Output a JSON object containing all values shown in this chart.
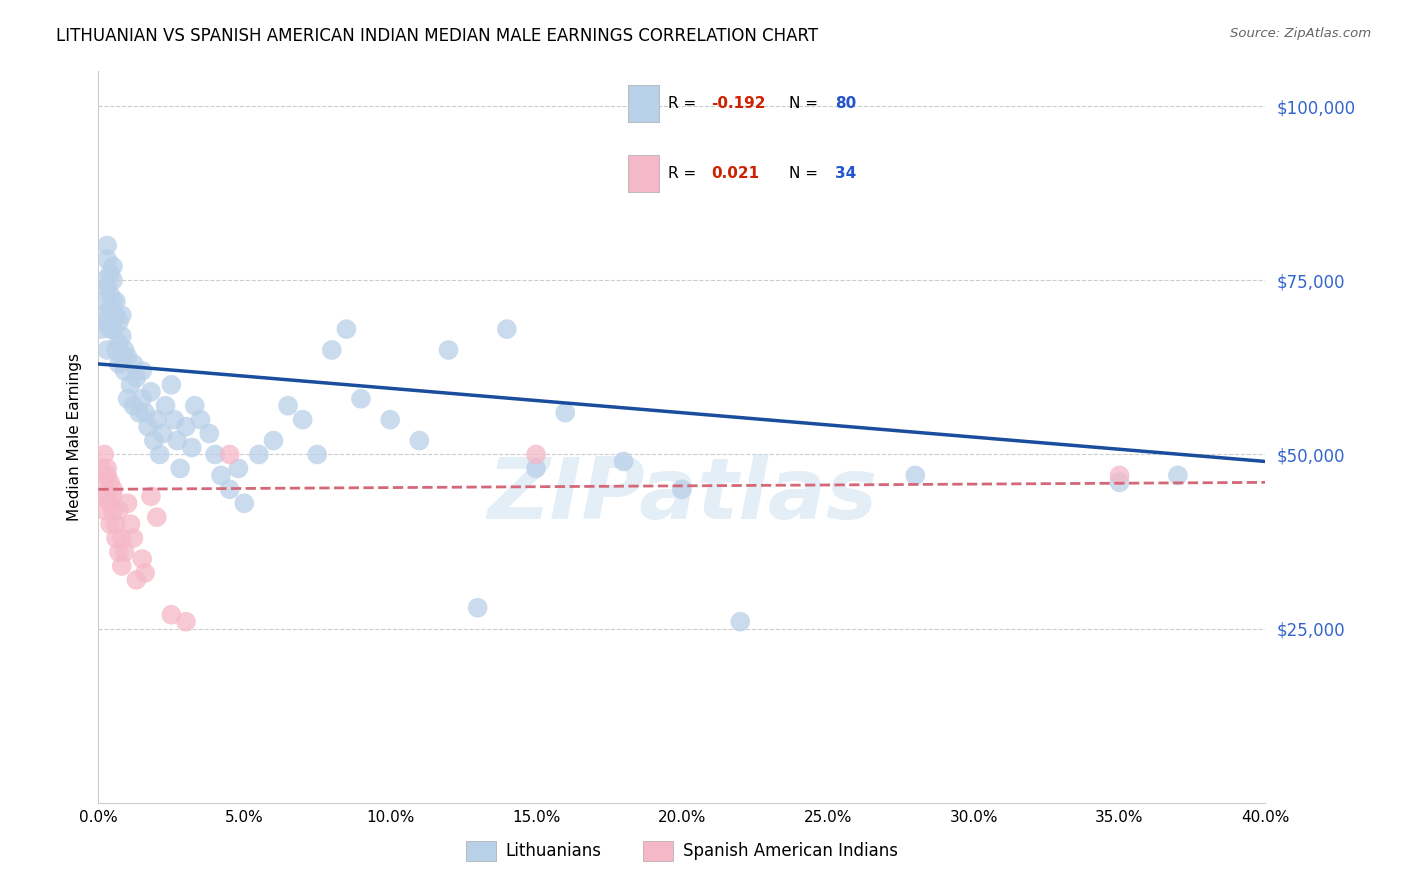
{
  "title": "LITHUANIAN VS SPANISH AMERICAN INDIAN MEDIAN MALE EARNINGS CORRELATION CHART",
  "source": "Source: ZipAtlas.com",
  "ylabel": "Median Male Earnings",
  "blue_R": "-0.192",
  "blue_N": "80",
  "pink_R": "0.021",
  "pink_N": "34",
  "blue_color": "#b8d0e8",
  "pink_color": "#f5b8c8",
  "blue_line_color": "#1a4d9e",
  "pink_line_color": "#d46878",
  "watermark": "ZIPatlas",
  "ytick_color": "#3366cc",
  "blue_legend_label": "Lithuanians",
  "pink_legend_label": "Spanish American Indians",
  "blue_scatter_x": [
    0.001,
    0.001,
    0.002,
    0.002,
    0.002,
    0.003,
    0.003,
    0.003,
    0.003,
    0.004,
    0.004,
    0.004,
    0.004,
    0.005,
    0.005,
    0.005,
    0.005,
    0.006,
    0.006,
    0.006,
    0.007,
    0.007,
    0.007,
    0.008,
    0.008,
    0.008,
    0.009,
    0.009,
    0.01,
    0.01,
    0.011,
    0.012,
    0.012,
    0.013,
    0.014,
    0.015,
    0.015,
    0.016,
    0.017,
    0.018,
    0.019,
    0.02,
    0.021,
    0.022,
    0.023,
    0.025,
    0.026,
    0.027,
    0.028,
    0.03,
    0.032,
    0.033,
    0.035,
    0.038,
    0.04,
    0.042,
    0.045,
    0.048,
    0.05,
    0.055,
    0.06,
    0.065,
    0.07,
    0.075,
    0.08,
    0.085,
    0.09,
    0.1,
    0.11,
    0.12,
    0.13,
    0.14,
    0.15,
    0.16,
    0.18,
    0.2,
    0.22,
    0.28,
    0.35,
    0.37
  ],
  "blue_scatter_y": [
    70000,
    68000,
    72000,
    75000,
    69000,
    78000,
    80000,
    74000,
    65000,
    76000,
    73000,
    68000,
    71000,
    77000,
    72000,
    75000,
    68000,
    70000,
    65000,
    72000,
    66000,
    69000,
    63000,
    67000,
    70000,
    64000,
    65000,
    62000,
    64000,
    58000,
    60000,
    63000,
    57000,
    61000,
    56000,
    58000,
    62000,
    56000,
    54000,
    59000,
    52000,
    55000,
    50000,
    53000,
    57000,
    60000,
    55000,
    52000,
    48000,
    54000,
    51000,
    57000,
    55000,
    53000,
    50000,
    47000,
    45000,
    48000,
    43000,
    50000,
    52000,
    57000,
    55000,
    50000,
    65000,
    68000,
    58000,
    55000,
    52000,
    65000,
    28000,
    68000,
    48000,
    56000,
    49000,
    45000,
    26000,
    47000,
    46000,
    47000
  ],
  "pink_scatter_x": [
    0.001,
    0.001,
    0.002,
    0.002,
    0.002,
    0.003,
    0.003,
    0.003,
    0.004,
    0.004,
    0.004,
    0.005,
    0.005,
    0.005,
    0.006,
    0.006,
    0.007,
    0.007,
    0.008,
    0.008,
    0.009,
    0.01,
    0.011,
    0.012,
    0.013,
    0.015,
    0.016,
    0.018,
    0.02,
    0.025,
    0.03,
    0.045,
    0.15,
    0.35
  ],
  "pink_scatter_y": [
    44000,
    48000,
    46000,
    50000,
    42000,
    47000,
    44000,
    48000,
    46000,
    43000,
    40000,
    44000,
    42000,
    45000,
    40000,
    38000,
    36000,
    42000,
    38000,
    34000,
    36000,
    43000,
    40000,
    38000,
    32000,
    35000,
    33000,
    44000,
    41000,
    27000,
    26000,
    50000,
    50000,
    47000
  ]
}
